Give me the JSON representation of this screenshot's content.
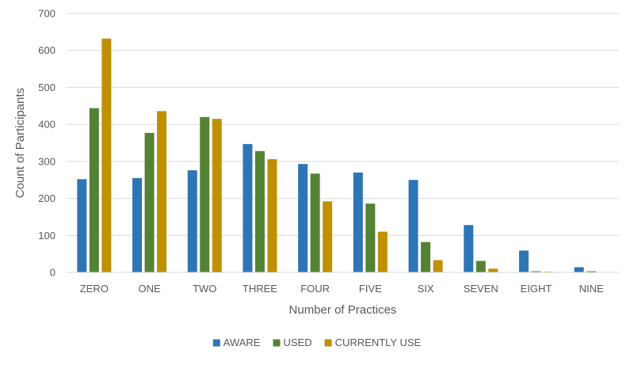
{
  "chart_data": {
    "type": "bar",
    "title": "",
    "xlabel": "Number of Practices",
    "ylabel": "Count of Participants",
    "ylim": [
      0,
      700
    ],
    "yticks": [
      0,
      100,
      200,
      300,
      400,
      500,
      600,
      700
    ],
    "grid": true,
    "legend_position": "bottom",
    "categories": [
      "ZERO",
      "ONE",
      "TWO",
      "THREE",
      "FOUR",
      "FIVE",
      "SIX",
      "SEVEN",
      "EIGHT",
      "NINE"
    ],
    "series": [
      {
        "name": "AWARE",
        "color": "#2e75b6",
        "values": [
          252,
          255,
          276,
          347,
          293,
          270,
          250,
          128,
          59,
          14
        ]
      },
      {
        "name": "USED",
        "color": "#548235",
        "values": [
          444,
          377,
          420,
          328,
          267,
          186,
          82,
          31,
          3,
          3
        ]
      },
      {
        "name": "CURRENTLY USE",
        "color": "#bf9000",
        "values": [
          632,
          436,
          415,
          306,
          192,
          110,
          33,
          10,
          2,
          0
        ]
      }
    ]
  }
}
